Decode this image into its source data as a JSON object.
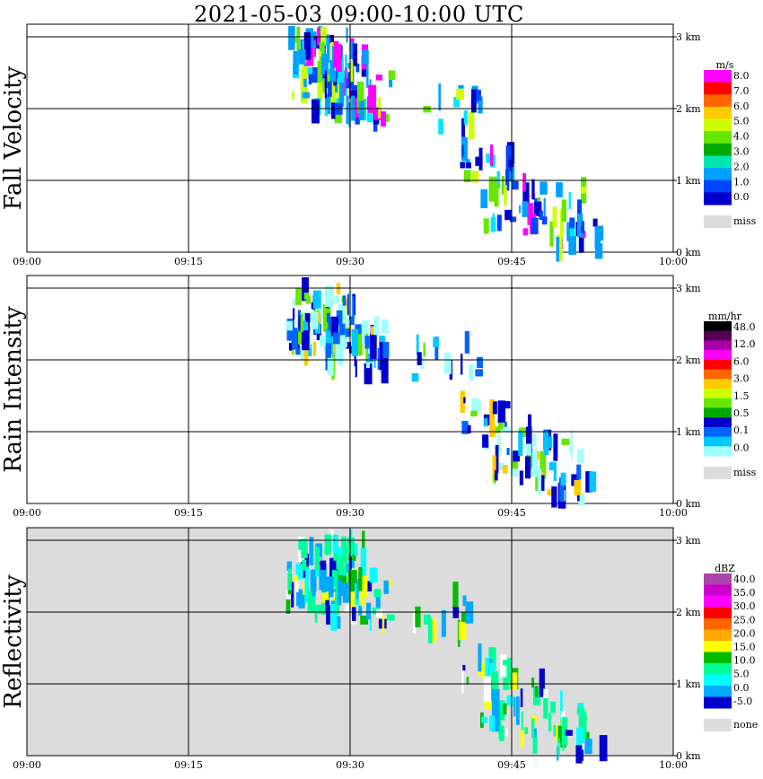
{
  "page": {
    "title": "2021-05-03   09:00-10:00 UTC"
  },
  "chart_data": [
    {
      "type": "heatmap",
      "panel_label": "Fall Velocity",
      "x_ticks": [
        "09:00",
        "09:15",
        "09:30",
        "09:45",
        "10:00"
      ],
      "y_ticks": [
        "0 km",
        "1 km",
        "2 km",
        "3 km"
      ],
      "xlim": [
        "09:00",
        "10:00"
      ],
      "ylim_km": [
        0,
        3.2
      ],
      "grid": true,
      "legend_placement": "right",
      "legend": {
        "unit": "m/s",
        "colors": [
          "#ff00ff",
          "#ff0000",
          "#ff6600",
          "#ffcc00",
          "#ccff00",
          "#66e600",
          "#00aa00",
          "#00e6b0",
          "#00a0ff",
          "#0044ff",
          "#0000cc"
        ],
        "labels": [
          "8.0",
          "7.0",
          "6.0",
          "5.0",
          "4.0",
          "3.0",
          "2.0",
          "1.0",
          "0.0"
        ],
        "missing_label": "miss",
        "missing_color": "#dcdcdc"
      },
      "background": "#ffffff",
      "echo_palette": [
        "#0044ff",
        "#00a0ff",
        "#00e6ff",
        "#00a0ff",
        "#0000cc",
        "#66e600",
        "#ccff00",
        "#ff00ff"
      ]
    },
    {
      "type": "heatmap",
      "panel_label": "Rain Intensity",
      "x_ticks": [
        "09:00",
        "09:15",
        "09:30",
        "09:45",
        "10:00"
      ],
      "y_ticks": [
        "0 km",
        "1 km",
        "2 km",
        "3 km"
      ],
      "xlim": [
        "09:00",
        "10:00"
      ],
      "ylim_km": [
        0,
        3.2
      ],
      "grid": true,
      "legend_placement": "right",
      "legend": {
        "unit": "mm/hr",
        "colors": [
          "#000000",
          "#550055",
          "#aa00aa",
          "#ff00ff",
          "#ff0000",
          "#ff6600",
          "#ffcc00",
          "#ccff00",
          "#66e600",
          "#00aa00",
          "#0000cc",
          "#0066ff",
          "#00c8ff",
          "#a0ffff"
        ],
        "labels": [
          "48.0",
          "12.0",
          "6.0",
          "3.0",
          "1.5",
          "0.5",
          "0.1",
          "0.0"
        ],
        "missing_label": "miss",
        "missing_color": "#dcdcdc"
      },
      "background": "#ffffff",
      "echo_palette": [
        "#0000cc",
        "#0066ff",
        "#00c8ff",
        "#a0ffff",
        "#0000cc",
        "#66e600",
        "#ffcc00",
        "#a0ffff"
      ]
    },
    {
      "type": "heatmap",
      "panel_label": "Reflectivity",
      "x_ticks": [
        "09:00",
        "09:15",
        "09:30",
        "09:45",
        "10:00"
      ],
      "y_ticks": [
        "0 km",
        "1 km",
        "2 km",
        "3 km"
      ],
      "xlim": [
        "09:00",
        "10:00"
      ],
      "ylim_km": [
        0,
        3.2
      ],
      "grid": true,
      "legend_placement": "right",
      "legend": {
        "unit": "dBZ",
        "colors": [
          "#aa44aa",
          "#cc00cc",
          "#ff00ff",
          "#ff0000",
          "#ff6600",
          "#ffaa00",
          "#ffff00",
          "#00bb00",
          "#00ff99",
          "#00ffff",
          "#00aaff",
          "#0000cc"
        ],
        "labels": [
          "40.0",
          "35.0",
          "30.0",
          "25.0",
          "20.0",
          "15.0",
          "10.0",
          "5.0",
          "0.0",
          "-5.0"
        ],
        "missing_label": "none",
        "missing_color": "#dcdcdc"
      },
      "background": "#dcdcdc",
      "echo_palette": [
        "#00ffff",
        "#00aaff",
        "#00ff99",
        "#00bb00",
        "#0000cc",
        "#ffff00",
        "#00ff99",
        "#ffffff"
      ]
    }
  ]
}
